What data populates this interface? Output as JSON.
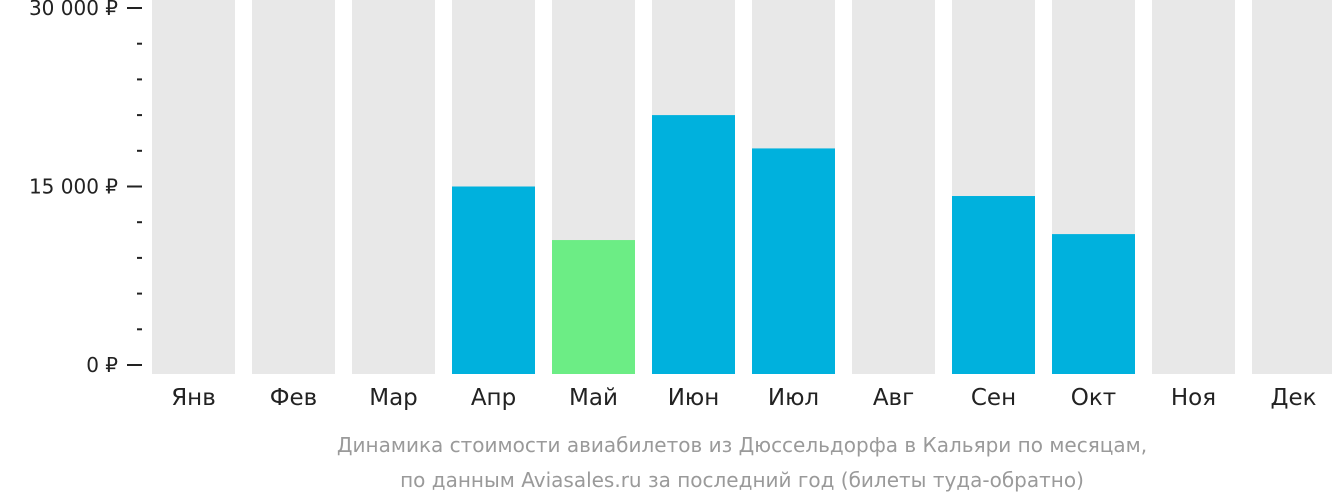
{
  "chart_data": {
    "type": "bar",
    "title": "",
    "xlabel": "",
    "ylabel": "",
    "categories": [
      "Янв",
      "Фев",
      "Мар",
      "Апр",
      "Май",
      "Июн",
      "Июл",
      "Авг",
      "Сен",
      "Окт",
      "Ноя",
      "Дек"
    ],
    "values": [
      null,
      null,
      null,
      15000,
      10500,
      21000,
      18200,
      null,
      14200,
      11000,
      null,
      null
    ],
    "ylim": [
      0,
      30000
    ],
    "yticks": [
      0,
      15000,
      30000
    ],
    "ytick_labels": [
      "0 ₽",
      "15 000 ₽",
      "30 000 ₽"
    ],
    "minor_ticks_between_labels": 4,
    "grid": false,
    "legend": "none",
    "highlight_category": "Май",
    "colors": {
      "bar": "#00b1dd",
      "highlight": "#6ced85",
      "background_bar": "#e8e8e8",
      "axis": "#222222",
      "caption": "#9a9a9a"
    }
  },
  "caption": {
    "line1": "Динамика стоимости авиабилетов из Дюссельдорфа в Кальяри по месяцам,",
    "line2": "по данным Aviasales.ru за последний год (билеты туда-обратно)"
  }
}
